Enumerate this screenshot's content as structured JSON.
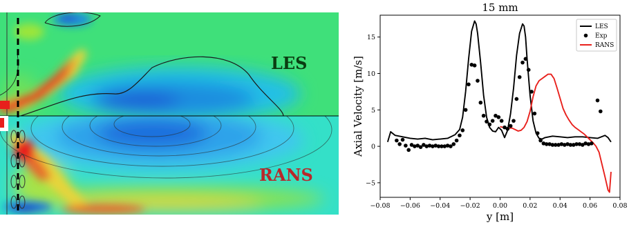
{
  "contour_panel": {
    "top_label": "LES",
    "bottom_label": "RANS",
    "colors": {
      "top_label": "#0b3d12",
      "bottom_label": "#b8282a",
      "dashed_line": "#000000"
    }
  },
  "chart_data": {
    "type": "line",
    "title": "15 mm",
    "xlabel": "y [m]",
    "ylabel": "Axial Velocity [m/s]",
    "xlim": [
      -0.08,
      0.08
    ],
    "ylim": [
      -7,
      18
    ],
    "xticks": [
      -0.08,
      -0.06,
      -0.04,
      -0.02,
      0.0,
      0.02,
      0.04,
      0.06,
      0.08
    ],
    "xtick_labels": [
      "−0.08",
      "−0.06",
      "−0.04",
      "−0.02",
      "0.00",
      "0.02",
      "0.04",
      "0.06",
      "0.08"
    ],
    "yticks": [
      -5,
      0,
      5,
      10,
      15
    ],
    "ytick_labels": [
      "−5",
      "0",
      "5",
      "10",
      "15"
    ],
    "grid": false,
    "legend_position": "top-right",
    "series": [
      {
        "name": "LES",
        "style": "line",
        "color": "#000000",
        "x": [
          -0.075,
          -0.073,
          -0.07,
          -0.065,
          -0.06,
          -0.055,
          -0.05,
          -0.045,
          -0.04,
          -0.035,
          -0.03,
          -0.027,
          -0.025,
          -0.023,
          -0.021,
          -0.019,
          -0.017,
          -0.016,
          -0.015,
          -0.013,
          -0.011,
          -0.009,
          -0.007,
          -0.005,
          -0.003,
          -0.001,
          0.001,
          0.003,
          0.005,
          0.007,
          0.009,
          0.011,
          0.013,
          0.015,
          0.016,
          0.017,
          0.018,
          0.02,
          0.022,
          0.024,
          0.026,
          0.028,
          0.03,
          0.035,
          0.04,
          0.045,
          0.05,
          0.055,
          0.06,
          0.065,
          0.07,
          0.072,
          0.074
        ],
        "y": [
          0.6,
          2.0,
          1.5,
          1.3,
          1.1,
          1.0,
          1.1,
          0.9,
          1.0,
          1.1,
          1.6,
          2.3,
          4.0,
          7.5,
          12.0,
          15.8,
          17.2,
          16.8,
          15.5,
          11.5,
          7.0,
          4.0,
          2.6,
          2.1,
          2.0,
          2.6,
          2.2,
          1.2,
          2.2,
          4.5,
          8.0,
          12.5,
          15.5,
          16.8,
          16.5,
          15.0,
          12.0,
          7.0,
          3.5,
          1.8,
          1.1,
          1.0,
          1.2,
          1.4,
          1.3,
          1.2,
          1.3,
          1.3,
          1.2,
          1.1,
          1.5,
          1.2,
          0.6
        ]
      },
      {
        "name": "Exp",
        "style": "markers",
        "color": "#000000",
        "x": [
          -0.069,
          -0.067,
          -0.065,
          -0.063,
          -0.061,
          -0.059,
          -0.057,
          -0.055,
          -0.053,
          -0.051,
          -0.049,
          -0.047,
          -0.045,
          -0.043,
          -0.041,
          -0.039,
          -0.037,
          -0.035,
          -0.033,
          -0.031,
          -0.029,
          -0.027,
          -0.025,
          -0.023,
          -0.021,
          -0.019,
          -0.017,
          -0.015,
          -0.013,
          -0.011,
          -0.009,
          -0.007,
          -0.005,
          -0.003,
          -0.001,
          0.001,
          0.003,
          0.005,
          0.007,
          0.009,
          0.011,
          0.013,
          0.015,
          0.017,
          0.019,
          0.021,
          0.023,
          0.025,
          0.027,
          0.029,
          0.031,
          0.033,
          0.035,
          0.037,
          0.039,
          0.041,
          0.043,
          0.045,
          0.047,
          0.049,
          0.051,
          0.053,
          0.055,
          0.057,
          0.059,
          0.061,
          0.065,
          0.067
        ],
        "y": [
          0.8,
          0.3,
          0.9,
          0.1,
          -0.5,
          0.2,
          0.0,
          0.1,
          -0.1,
          0.2,
          0.0,
          0.1,
          0.0,
          0.1,
          0.0,
          0.0,
          0.0,
          0.1,
          0.0,
          0.3,
          0.8,
          1.5,
          2.2,
          5.0,
          8.5,
          11.2,
          11.1,
          9.0,
          6.0,
          4.2,
          3.4,
          3.0,
          3.5,
          4.2,
          4.0,
          3.5,
          2.6,
          2.4,
          2.8,
          3.5,
          6.5,
          9.5,
          11.5,
          12.0,
          10.5,
          7.5,
          4.5,
          1.8,
          0.8,
          0.4,
          0.3,
          0.3,
          0.2,
          0.2,
          0.2,
          0.3,
          0.2,
          0.3,
          0.2,
          0.2,
          0.3,
          0.3,
          0.2,
          0.4,
          0.3,
          0.4,
          6.3,
          4.8
        ]
      },
      {
        "name": "RANS",
        "style": "line",
        "color": "#e8201c",
        "x": [
          0.0,
          0.002,
          0.004,
          0.006,
          0.008,
          0.01,
          0.012,
          0.014,
          0.016,
          0.018,
          0.02,
          0.022,
          0.024,
          0.026,
          0.028,
          0.03,
          0.032,
          0.034,
          0.036,
          0.038,
          0.04,
          0.042,
          0.044,
          0.046,
          0.048,
          0.05,
          0.052,
          0.054,
          0.056,
          0.058,
          0.06,
          0.062,
          0.064,
          0.066,
          0.068,
          0.07,
          0.072,
          0.073,
          0.074
        ],
        "y": [
          2.7,
          2.6,
          2.5,
          2.5,
          2.5,
          2.3,
          2.1,
          2.2,
          2.6,
          3.4,
          4.8,
          6.8,
          8.3,
          9.0,
          9.3,
          9.6,
          9.9,
          9.9,
          9.3,
          8.0,
          6.6,
          5.2,
          4.3,
          3.6,
          3.0,
          2.6,
          2.3,
          2.0,
          1.7,
          1.3,
          0.9,
          0.5,
          0.0,
          -0.8,
          -2.5,
          -4.2,
          -6.0,
          -6.3,
          -3.5
        ]
      }
    ]
  }
}
